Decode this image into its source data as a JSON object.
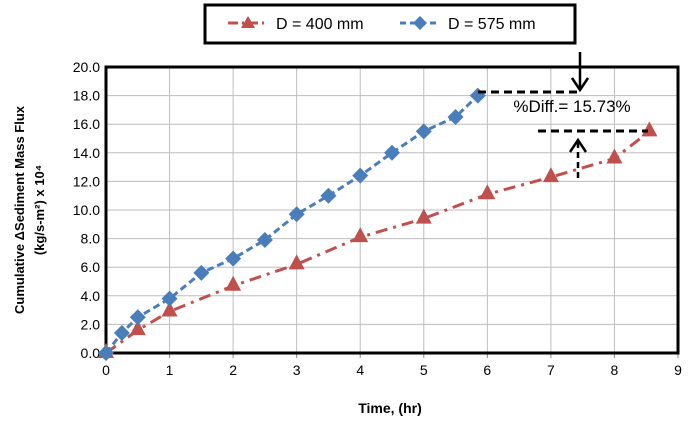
{
  "chart_data": {
    "type": "line",
    "title": "",
    "xlabel": "Time, (hr)",
    "ylabel_line1": "Cumulative ΔSediment Mass  Flux",
    "ylabel_line2": "(kg/s-m²) x 10⁴",
    "xlim": [
      0,
      9
    ],
    "ylim": [
      0,
      20
    ],
    "xticks": [
      "0",
      "1",
      "2",
      "3",
      "4",
      "5",
      "6",
      "7",
      "8",
      "9"
    ],
    "yticks": [
      "0.0",
      "2.0",
      "4.0",
      "6.0",
      "8.0",
      "10.0",
      "12.0",
      "14.0",
      "16.0",
      "18.0",
      "20.0"
    ],
    "grid": true,
    "legend_position": "top",
    "series": [
      {
        "name": "D = 400 mm",
        "color": "#c0504d",
        "marker": "triangle",
        "x": [
          0,
          0.5,
          1,
          2,
          3,
          4,
          5,
          6,
          7,
          8,
          8.55
        ],
        "y": [
          0,
          1.6,
          2.9,
          4.7,
          6.2,
          8.1,
          9.4,
          11.1,
          12.3,
          13.6,
          15.5
        ]
      },
      {
        "name": "D = 575 mm",
        "color": "#4a7ebb",
        "marker": "diamond",
        "x": [
          0,
          0.25,
          0.5,
          1,
          1.5,
          2,
          2.5,
          3,
          3.5,
          4,
          4.5,
          5,
          5.5,
          5.85
        ],
        "y": [
          0,
          1.4,
          2.5,
          3.8,
          5.6,
          6.6,
          7.9,
          9.7,
          11.0,
          12.4,
          14.0,
          15.5,
          16.5,
          18.0
        ]
      }
    ],
    "annotation": "%Diff.= 15.73%"
  }
}
